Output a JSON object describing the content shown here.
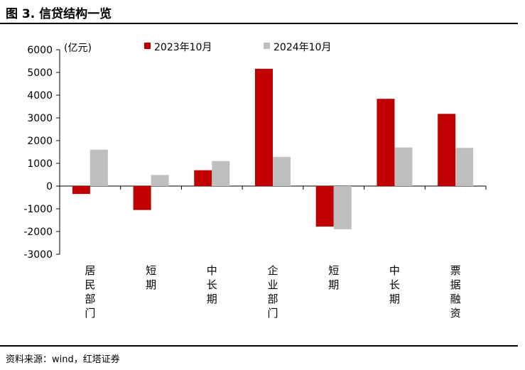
{
  "header": {
    "title": "图 3. 信贷结构一览"
  },
  "footer": {
    "source": "资料来源：wind，红塔证券"
  },
  "chart_data": {
    "type": "bar",
    "unit_label": "(亿元)",
    "categories": [
      "居民部门",
      "短期",
      "中长期",
      "企业部门",
      "短期",
      "中长期",
      "票据融资"
    ],
    "series": [
      {
        "name": "2023年10月",
        "color": "#C00000",
        "values": [
          -346,
          -1052,
          697,
          5162,
          -1784,
          3838,
          3177
        ]
      },
      {
        "name": "2024年10月",
        "color": "#BFBFBF",
        "values": [
          1600,
          488,
          1101,
          1285,
          -1900,
          1700,
          1680
        ]
      }
    ],
    "ylim": [
      -3000,
      6000
    ],
    "yticks": [
      6000,
      5000,
      4000,
      3000,
      2000,
      1000,
      0,
      -1000,
      -2000,
      -3000
    ],
    "legend_position": "top",
    "grid": false
  }
}
